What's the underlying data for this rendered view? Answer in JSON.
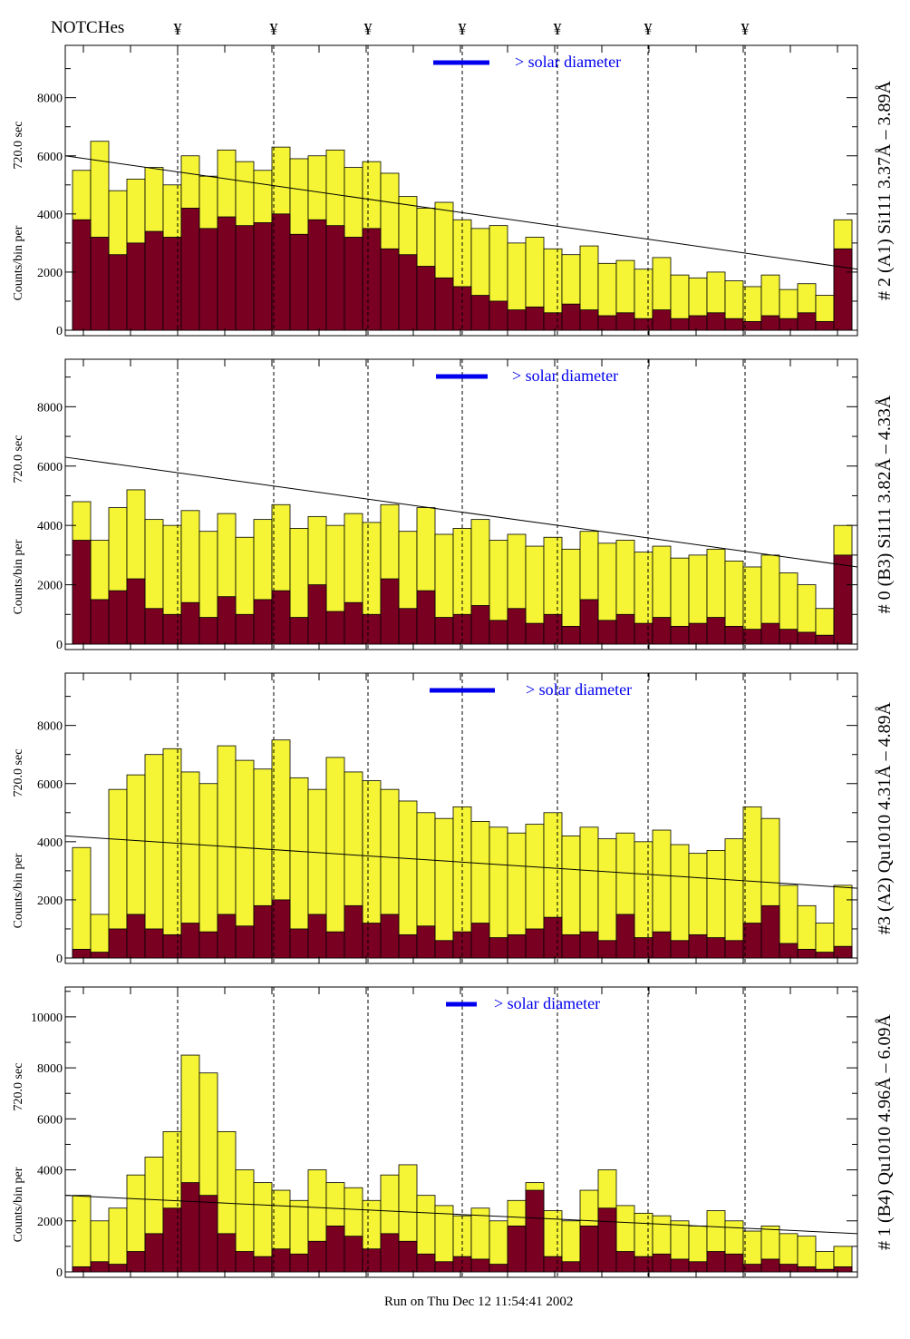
{
  "header": {
    "notches_label": "NOTCHes",
    "notch_symbol": "¥",
    "notch_positions": [
      5.8,
      11.1,
      16.3,
      21.5,
      26.75,
      31.75,
      37.1
    ]
  },
  "footer": {
    "run_label": "Run on Thu Dec 12 11:54:41 2002"
  },
  "colors": {
    "total": "#f5f536",
    "lower": "#7a0022",
    "legend": "#0000ee"
  },
  "chart_data": [
    {
      "type": "bar",
      "title": "# 2 (A1) Si111  3.37Å – 3.89Å",
      "ylabel_line1": "Counts/bin per",
      "ylabel_line2": "720.0 sec",
      "legend": "> solar diameter",
      "ylim": [
        0,
        9800
      ],
      "yticks": [
        0,
        2000,
        4000,
        6000,
        8000
      ],
      "xlim": [
        -0.4,
        43.3
      ],
      "fit_line": [
        6000,
        2100
      ],
      "series": [
        {
          "name": "total",
          "values": [
            5500,
            6500,
            4800,
            5200,
            5600,
            5000,
            6000,
            5300,
            6200,
            5800,
            5500,
            6300,
            5900,
            6000,
            6200,
            5600,
            5800,
            5400,
            4600,
            4200,
            4400,
            3800,
            3500,
            3600,
            3000,
            3200,
            2800,
            2600,
            2900,
            2300,
            2400,
            2100,
            2500,
            1900,
            1800,
            2000,
            1700,
            1500,
            1900,
            1400,
            1600,
            1200,
            3800
          ]
        },
        {
          "name": "lower",
          "values": [
            3800,
            3200,
            2600,
            3000,
            3400,
            3200,
            4200,
            3500,
            3900,
            3600,
            3700,
            4000,
            3300,
            3800,
            3600,
            3200,
            3500,
            2800,
            2600,
            2200,
            1800,
            1500,
            1200,
            1000,
            700,
            800,
            600,
            900,
            700,
            500,
            600,
            400,
            700,
            400,
            500,
            600,
            400,
            300,
            500,
            400,
            600,
            300,
            2800
          ]
        }
      ]
    },
    {
      "type": "bar",
      "title": "# 0 (B3) Si111  3.82Å – 4.33Å",
      "ylabel_line1": "Counts/bin per",
      "ylabel_line2": "720.0 sec",
      "legend": "> solar diameter",
      "ylim": [
        0,
        9600
      ],
      "yticks": [
        0,
        2000,
        4000,
        6000,
        8000
      ],
      "xlim": [
        -0.4,
        43.3
      ],
      "fit_line": [
        6300,
        2600
      ],
      "series": [
        {
          "name": "total",
          "values": [
            4800,
            3500,
            4600,
            5200,
            4200,
            4000,
            4500,
            3800,
            4400,
            3600,
            4200,
            4700,
            3900,
            4300,
            4000,
            4400,
            4100,
            4700,
            3800,
            4600,
            3700,
            3900,
            4200,
            3500,
            3700,
            3300,
            3600,
            3200,
            3800,
            3400,
            3500,
            3100,
            3300,
            2900,
            3000,
            3200,
            2800,
            2600,
            3000,
            2400,
            2000,
            1200,
            4000
          ]
        },
        {
          "name": "lower",
          "values": [
            3500,
            1500,
            1800,
            2200,
            1200,
            1000,
            1400,
            900,
            1600,
            1000,
            1500,
            1800,
            900,
            2000,
            1100,
            1400,
            1000,
            2200,
            1200,
            1800,
            900,
            1000,
            1300,
            800,
            1200,
            700,
            1000,
            600,
            1500,
            800,
            1000,
            700,
            900,
            600,
            700,
            900,
            600,
            500,
            700,
            500,
            400,
            300,
            3000
          ]
        }
      ]
    },
    {
      "type": "bar",
      "title": "#3 (A2) Qu1010  4.31Å – 4.89Å",
      "ylabel_line1": "Counts/bin per",
      "ylabel_line2": "720.0 sec",
      "legend": "> solar diameter",
      "ylim": [
        0,
        9800
      ],
      "yticks": [
        0,
        2000,
        4000,
        6000,
        8000
      ],
      "xlim": [
        -0.4,
        43.3
      ],
      "fit_line": [
        4200,
        2400
      ],
      "series": [
        {
          "name": "total",
          "values": [
            3800,
            1500,
            5800,
            6300,
            7000,
            7200,
            6400,
            6000,
            7300,
            6800,
            6500,
            7500,
            6200,
            5800,
            6900,
            6400,
            6100,
            5800,
            5400,
            5000,
            4800,
            5200,
            4700,
            4500,
            4300,
            4600,
            5000,
            4200,
            4500,
            4100,
            4300,
            4000,
            4400,
            3900,
            3600,
            3700,
            4100,
            5200,
            4800,
            2500,
            1800,
            1200,
            2500
          ]
        },
        {
          "name": "lower",
          "values": [
            300,
            200,
            1000,
            1500,
            1000,
            800,
            1200,
            900,
            1500,
            1100,
            1800,
            2000,
            1000,
            1500,
            900,
            1800,
            1200,
            1500,
            800,
            1100,
            600,
            900,
            1200,
            700,
            800,
            1000,
            1400,
            800,
            900,
            600,
            1500,
            700,
            900,
            600,
            800,
            700,
            600,
            1200,
            1800,
            500,
            300,
            200,
            400
          ]
        }
      ]
    },
    {
      "type": "bar",
      "title": "# 1 (B4) Qu1010 4.96Å – 6.09Å",
      "ylabel_line1": "Counts/bin per",
      "ylabel_line2": "720.0 sec",
      "legend": "> solar diameter",
      "ylim": [
        0,
        11170
      ],
      "yticks": [
        0,
        2000,
        4000,
        6000,
        8000,
        10000
      ],
      "xlim": [
        -0.4,
        43.3
      ],
      "fit_line": [
        3000,
        1500
      ],
      "series": [
        {
          "name": "total",
          "values": [
            3000,
            2000,
            2500,
            3800,
            4500,
            5500,
            8500,
            7800,
            5500,
            4000,
            3500,
            3200,
            2800,
            4000,
            3500,
            3300,
            2800,
            3800,
            4200,
            3000,
            2600,
            2200,
            2500,
            2000,
            2800,
            3500,
            2400,
            2000,
            3200,
            4000,
            2600,
            2300,
            2200,
            2000,
            1800,
            2400,
            2000,
            1600,
            1800,
            1500,
            1400,
            800,
            1000
          ]
        },
        {
          "name": "lower",
          "values": [
            200,
            400,
            300,
            800,
            1500,
            2500,
            3500,
            3000,
            1500,
            800,
            600,
            900,
            700,
            1200,
            1800,
            1400,
            900,
            1500,
            1200,
            700,
            400,
            600,
            500,
            300,
            1800,
            3200,
            600,
            400,
            1800,
            2500,
            800,
            600,
            700,
            500,
            400,
            800,
            700,
            300,
            500,
            300,
            200,
            100,
            200
          ]
        }
      ]
    }
  ]
}
